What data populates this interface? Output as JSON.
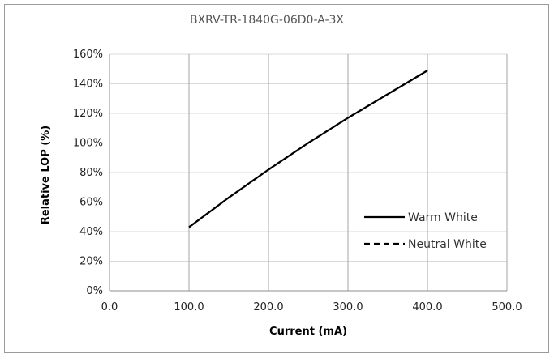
{
  "chart_data": {
    "type": "line",
    "title": "BXRV-TR-1840G-06D0-A-3X",
    "xlabel": "Current (mA)",
    "ylabel": "Relative LOP (%)",
    "xlim": [
      0,
      500
    ],
    "ylim": [
      0,
      160
    ],
    "x_ticks": [
      "0.0",
      "100.0",
      "200.0",
      "300.0",
      "400.0",
      "500.0"
    ],
    "y_ticks": [
      "0%",
      "20%",
      "40%",
      "60%",
      "80%",
      "100%",
      "120%",
      "140%",
      "160%"
    ],
    "grid": {
      "vertical": true,
      "horizontal": true
    },
    "legend_position": "right",
    "series": [
      {
        "name": "Warm White",
        "style": "solid",
        "color": "#000000",
        "x": [
          100,
          150,
          200,
          250,
          300,
          350,
          400
        ],
        "y": [
          43,
          63,
          82,
          100,
          117,
          133,
          149
        ]
      },
      {
        "name": "Neutral White",
        "style": "dashed",
        "color": "#000000",
        "x": [
          100,
          150,
          200,
          250,
          300,
          350,
          400
        ],
        "y": [
          43,
          63,
          82,
          100,
          117,
          133,
          149
        ]
      }
    ]
  }
}
